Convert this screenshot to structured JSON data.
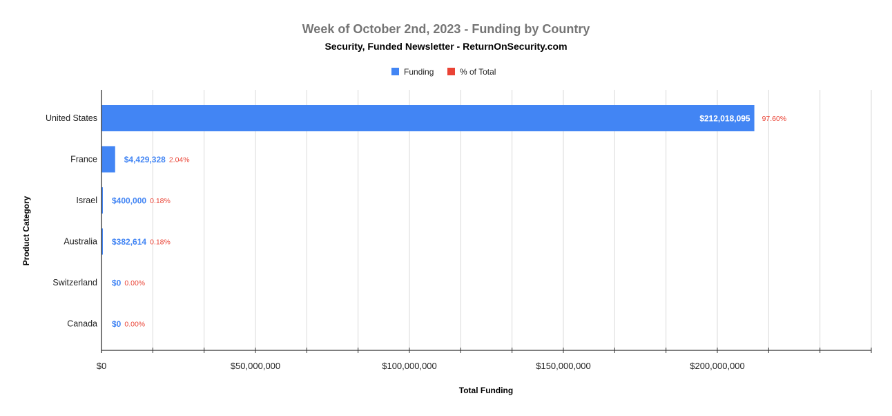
{
  "chart_data": {
    "type": "bar",
    "orientation": "horizontal",
    "title": "Week of October 2nd, 2023 - Funding by Country",
    "subtitle": "Security, Funded Newsletter - ReturnOnSecurity.com",
    "xlabel": "Total Funding",
    "ylabel": "Product Category",
    "categories": [
      "United States",
      "France",
      "Israel",
      "Australia",
      "Switzerland",
      "Canada"
    ],
    "series": [
      {
        "name": "Funding",
        "color": "#4285f4",
        "values": [
          212018095,
          4429328,
          400000,
          382614,
          0,
          0
        ],
        "labels": [
          "$212,018,095",
          "$4,429,328",
          "$400,000",
          "$382,614",
          "$0",
          "$0"
        ]
      },
      {
        "name": "% of Total",
        "color": "#ea4335",
        "values": [
          97.6,
          2.04,
          0.18,
          0.18,
          0.0,
          0.0
        ],
        "labels": [
          "97.60%",
          "2.04%",
          "0.18%",
          "0.18%",
          "0.00%",
          "0.00%"
        ]
      }
    ],
    "xlim": [
      0,
      250000000
    ],
    "xticks": [
      0,
      50000000,
      100000000,
      150000000,
      200000000
    ],
    "xtick_labels": [
      "$0",
      "$50,000,000",
      "$100,000,000",
      "$150,000,000",
      "$200,000,000"
    ],
    "minor_gridlines_per_major": 3,
    "grid": true,
    "legend": "top"
  }
}
